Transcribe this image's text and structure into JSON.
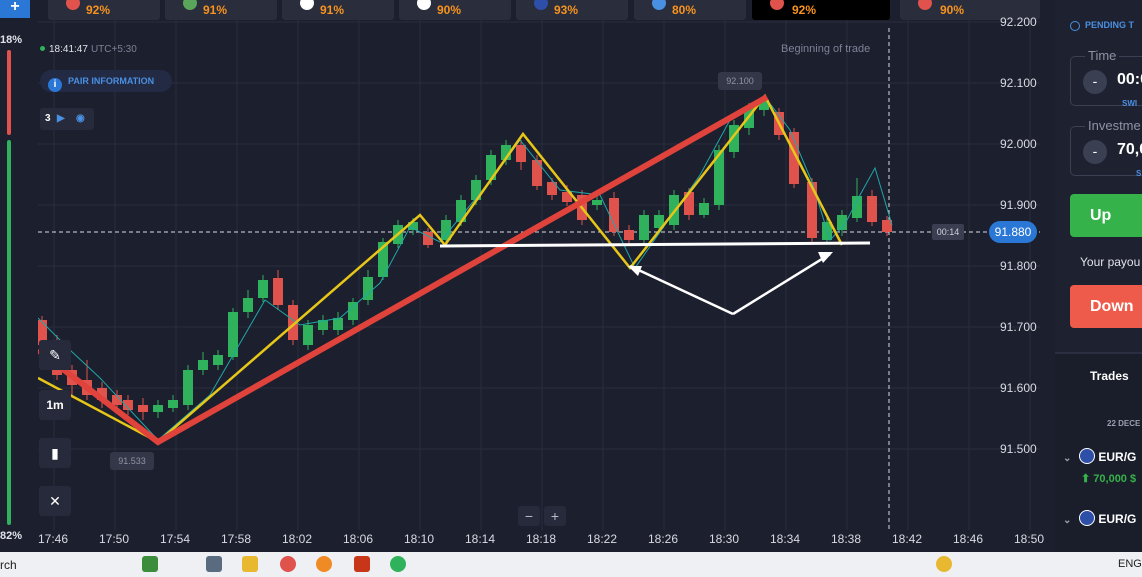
{
  "tabs": [
    {
      "pct": "92%",
      "flag_color": "#e0534c"
    },
    {
      "pct": "91%",
      "flag_color": "#5aa55a"
    },
    {
      "pct": "91%",
      "flag_color": "#ffffff"
    },
    {
      "pct": "90%",
      "flag_color": "#ffffff"
    },
    {
      "pct": "93%",
      "flag_color": "#2d4fa8"
    },
    {
      "pct": "80%",
      "flag_color": "#4a90e2"
    },
    {
      "pct": "92%",
      "flag_color": "#e0534c"
    },
    {
      "pct": "90%",
      "flag_color": "#e0534c"
    }
  ],
  "sentiment": {
    "top_pct": "18%",
    "bottom_pct": "82%"
  },
  "header": {
    "time": "18:41:47",
    "timezone": "UTC+5:30",
    "pair_info_label": "PAIR INFORMATION",
    "indicator_count": "3"
  },
  "tools": {
    "timeframe": "1m"
  },
  "chart": {
    "beginning_label": "Beginning of trade",
    "current_price": "91.880",
    "countdown": "00:14",
    "high_label": "92.100",
    "low_label": "91.533",
    "y_ticks": [
      "92.200",
      "92.100",
      "92.000",
      "91.900",
      "91.800",
      "91.700",
      "91.600",
      "91.500"
    ],
    "x_ticks": [
      "17:46",
      "17:50",
      "17:54",
      "17:58",
      "18:02",
      "18:06",
      "18:10",
      "18:14",
      "18:18",
      "18:22",
      "18:26",
      "18:30",
      "18:34",
      "18:38",
      "18:42",
      "18:46",
      "18:50"
    ],
    "zoom_out": "−",
    "zoom_in": "+"
  },
  "panel": {
    "pending_label": "PENDING T",
    "time_label": "Time",
    "time_value": "00:0",
    "switch_label": "SWI",
    "investment_label": "Investme",
    "investment_value": "70,0",
    "s_label": "S",
    "up_label": "Up",
    "payout_label": "Your payou",
    "down_label": "Down"
  },
  "trades": {
    "title": "Trades",
    "date": "22 DECE",
    "rows": [
      {
        "pair": "EUR/G",
        "amount": "70,000 $"
      },
      {
        "pair": "EUR/G",
        "amount": ""
      }
    ]
  },
  "taskbar": {
    "search": "rch",
    "lang": "ENG"
  },
  "colors": {
    "up": "#2fb25b",
    "down": "#e0534c",
    "accent": "#2a77d6",
    "trend_red": "#e0433c",
    "trend_yellow": "#e6c619"
  }
}
